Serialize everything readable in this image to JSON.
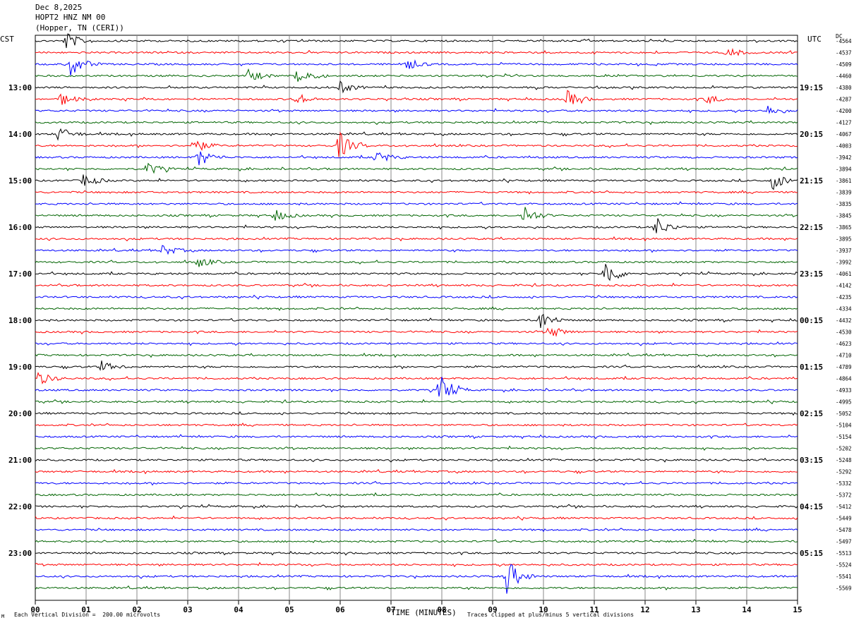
{
  "header": {
    "date": "Dec 8,2025",
    "station": "HOPT2 HNZ NM 00",
    "location": "(Hopper, TN (CERI))"
  },
  "left_zone": "CST",
  "right_zone": "UTC",
  "dc_label": "DC",
  "footer": {
    "scale": "Each Vertical Division =  200.00 microvolts",
    "clip": "Traces clipped at plus/minus 5 vertical divisions",
    "mark": "M"
  },
  "chart_data": {
    "type": "line",
    "title": "",
    "xlabel": "TIME (MINUTES)",
    "xlim": [
      0,
      15
    ],
    "x_ticks": [
      "00",
      "01",
      "02",
      "03",
      "04",
      "05",
      "06",
      "07",
      "08",
      "09",
      "10",
      "11",
      "12",
      "13",
      "14",
      "15"
    ],
    "trace_colors": [
      "#000000",
      "#ff0000",
      "#0000ff",
      "#006400"
    ],
    "left_hour_labels": [
      {
        "row": 4,
        "text": "13:00"
      },
      {
        "row": 8,
        "text": "14:00"
      },
      {
        "row": 12,
        "text": "15:00"
      },
      {
        "row": 16,
        "text": "16:00"
      },
      {
        "row": 20,
        "text": "17:00"
      },
      {
        "row": 24,
        "text": "18:00"
      },
      {
        "row": 28,
        "text": "19:00"
      },
      {
        "row": 32,
        "text": "20:00"
      },
      {
        "row": 36,
        "text": "21:00"
      },
      {
        "row": 40,
        "text": "22:00"
      },
      {
        "row": 44,
        "text": "23:00"
      }
    ],
    "right_hour_labels": [
      {
        "row": 4,
        "text": "19:15"
      },
      {
        "row": 8,
        "text": "20:15"
      },
      {
        "row": 12,
        "text": "21:15"
      },
      {
        "row": 16,
        "text": "22:15"
      },
      {
        "row": 20,
        "text": "23:15"
      },
      {
        "row": 24,
        "text": "00:15"
      },
      {
        "row": 28,
        "text": "01:15"
      },
      {
        "row": 32,
        "text": "02:15"
      },
      {
        "row": 36,
        "text": "03:15"
      },
      {
        "row": 40,
        "text": "04:15"
      },
      {
        "row": 44,
        "text": "05:15"
      }
    ],
    "dc_offsets": [
      "-4564",
      "-4537",
      "-4509",
      "-4460",
      "-4380",
      "-4287",
      "-4200",
      "-4127",
      "-4067",
      "-4003",
      "-3942",
      "-3894",
      "-3861",
      "-3839",
      "-3835",
      "-3845",
      "-3865",
      "-3895",
      "-3937",
      "-3992",
      "-4061",
      "-4142",
      "-4235",
      "-4334",
      "-4432",
      "-4530",
      "-4623",
      "-4710",
      "-4789",
      "-4864",
      "-4933",
      "-4995",
      "-5052",
      "-5104",
      "-5154",
      "-5202",
      "-5248",
      "-5292",
      "-5332",
      "-5372",
      "-5412",
      "-5449",
      "-5478",
      "-5497",
      "-5513",
      "-5524",
      "-5541",
      "-5569"
    ],
    "events": [
      {
        "row": 0,
        "minute": 0.6,
        "amp": 1.4
      },
      {
        "row": 2,
        "minute": 0.7,
        "amp": 1.8
      },
      {
        "row": 3,
        "minute": 4.2,
        "amp": 1.0
      },
      {
        "row": 3,
        "minute": 5.15,
        "amp": 1.6
      },
      {
        "row": 4,
        "minute": 6.0,
        "amp": 0.8
      },
      {
        "row": 1,
        "minute": 13.6,
        "amp": 0.8
      },
      {
        "row": 2,
        "minute": 7.3,
        "amp": 0.9
      },
      {
        "row": 5,
        "minute": 0.5,
        "amp": 0.9
      },
      {
        "row": 5,
        "minute": 5.1,
        "amp": 1.0
      },
      {
        "row": 5,
        "minute": 10.45,
        "amp": 1.3
      },
      {
        "row": 5,
        "minute": 13.2,
        "amp": 0.7
      },
      {
        "row": 6,
        "minute": 14.4,
        "amp": 0.8
      },
      {
        "row": 8,
        "minute": 0.45,
        "amp": 1.1
      },
      {
        "row": 9,
        "minute": 3.1,
        "amp": 1.2
      },
      {
        "row": 9,
        "minute": 5.95,
        "amp": 2.2
      },
      {
        "row": 10,
        "minute": 3.2,
        "amp": 1.4
      },
      {
        "row": 10,
        "minute": 6.7,
        "amp": 1.0
      },
      {
        "row": 11,
        "minute": 2.2,
        "amp": 1.0
      },
      {
        "row": 12,
        "minute": 0.95,
        "amp": 1.0
      },
      {
        "row": 12,
        "minute": 14.5,
        "amp": 1.4
      },
      {
        "row": 15,
        "minute": 4.7,
        "amp": 0.9
      },
      {
        "row": 15,
        "minute": 9.6,
        "amp": 1.5
      },
      {
        "row": 16,
        "minute": 12.2,
        "amp": 1.6
      },
      {
        "row": 18,
        "minute": 2.5,
        "amp": 0.8
      },
      {
        "row": 19,
        "minute": 3.2,
        "amp": 0.8
      },
      {
        "row": 20,
        "minute": 11.2,
        "amp": 2.2
      },
      {
        "row": 24,
        "minute": 9.9,
        "amp": 1.7
      },
      {
        "row": 25,
        "minute": 10.1,
        "amp": 1.0
      },
      {
        "row": 28,
        "minute": 1.3,
        "amp": 0.8
      },
      {
        "row": 29,
        "minute": 0.05,
        "amp": 1.1
      },
      {
        "row": 30,
        "minute": 7.95,
        "amp": 2.4
      },
      {
        "row": 46,
        "minute": 9.25,
        "amp": 3.0
      }
    ]
  }
}
